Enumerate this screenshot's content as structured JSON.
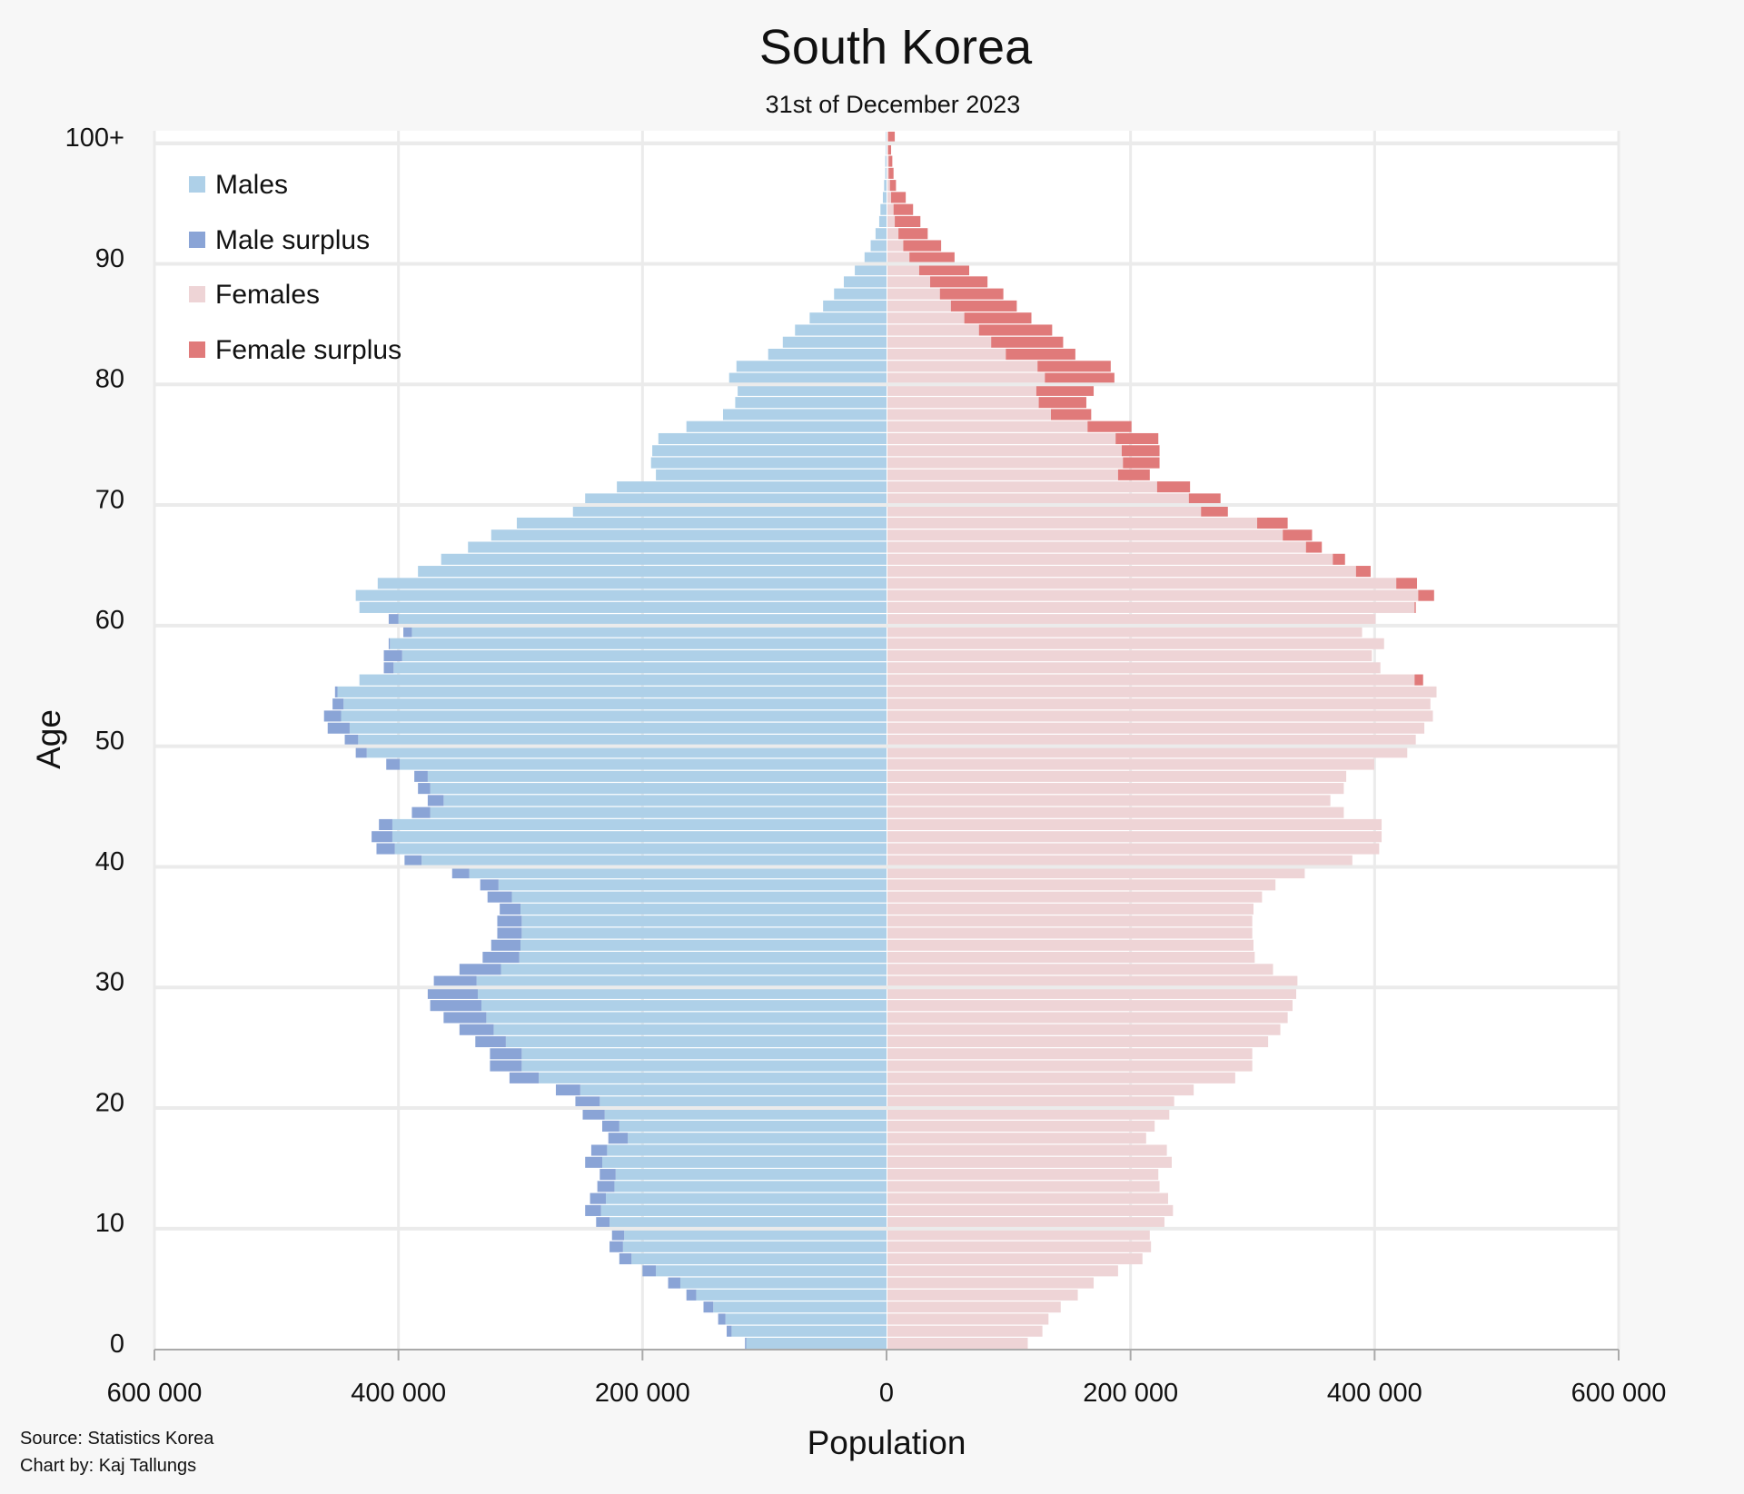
{
  "chart_data": {
    "type": "bar",
    "orientation": "population-pyramid",
    "title": "South Korea",
    "subtitle": "31st of December 2023",
    "xlabel": "Population",
    "ylabel": "Age",
    "xlim": [
      -600000,
      600000
    ],
    "x_tick_labels": [
      "600 000",
      "400 000",
      "200 000",
      "0",
      "200 000",
      "400 000",
      "600 000"
    ],
    "y_tick_labels": [
      "0",
      "10",
      "20",
      "30",
      "40",
      "50",
      "60",
      "70",
      "80",
      "90",
      "100+"
    ],
    "grid": true,
    "legend_position": "top-left",
    "legend": [
      "Males",
      "Male surplus",
      "Females",
      "Female surplus"
    ],
    "colors": {
      "males": "#aed0e8",
      "male_surplus": "#8aa4d6",
      "females": "#eed4d6",
      "female_surplus": "#e07a7a"
    },
    "ages": [
      "0",
      "1",
      "2",
      "3",
      "4",
      "5",
      "6",
      "7",
      "8",
      "9",
      "10",
      "11",
      "12",
      "13",
      "14",
      "15",
      "16",
      "17",
      "18",
      "19",
      "20",
      "21",
      "22",
      "23",
      "24",
      "25",
      "26",
      "27",
      "28",
      "29",
      "30",
      "31",
      "32",
      "33",
      "34",
      "35",
      "36",
      "37",
      "38",
      "39",
      "40",
      "41",
      "42",
      "43",
      "44",
      "45",
      "46",
      "47",
      "48",
      "49",
      "50",
      "51",
      "52",
      "53",
      "54",
      "55",
      "56",
      "57",
      "58",
      "59",
      "60",
      "61",
      "62",
      "63",
      "64",
      "65",
      "66",
      "67",
      "68",
      "69",
      "70",
      "71",
      "72",
      "73",
      "74",
      "75",
      "76",
      "77",
      "78",
      "79",
      "80",
      "81",
      "82",
      "83",
      "84",
      "85",
      "86",
      "87",
      "88",
      "89",
      "90",
      "91",
      "92",
      "93",
      "94",
      "95",
      "96",
      "97",
      "98",
      "99",
      "100+"
    ],
    "series": [
      {
        "name": "Males",
        "values": [
          116000,
          131000,
          138000,
          150000,
          164000,
          179000,
          200000,
          219000,
          227000,
          225000,
          238000,
          247000,
          243000,
          237000,
          235000,
          247000,
          242000,
          228000,
          233000,
          249000,
          255000,
          271000,
          309000,
          325000,
          325000,
          337000,
          350000,
          363000,
          374000,
          376000,
          371000,
          350000,
          331000,
          324000,
          319000,
          319000,
          317000,
          327000,
          333000,
          356000,
          395000,
          418000,
          422000,
          416000,
          389000,
          376000,
          384000,
          387000,
          410000,
          435000,
          444000,
          458000,
          461000,
          454000,
          452000,
          432000,
          412000,
          412000,
          408000,
          396000,
          408000,
          432000,
          435000,
          417000,
          384000,
          365000,
          343000,
          324000,
          303000,
          257000,
          247000,
          221000,
          189000,
          193000,
          192000,
          187000,
          164000,
          134000,
          124000,
          122000,
          129000,
          123000,
          97000,
          85000,
          75000,
          63000,
          52000,
          43000,
          35000,
          26000,
          18000,
          13000,
          9000,
          6000,
          5000,
          3000,
          2000,
          1000,
          1000,
          500,
          500
        ]
      },
      {
        "name": "Females",
        "values": [
          115000,
          127000,
          132000,
          142000,
          156000,
          169000,
          189000,
          209000,
          216000,
          215000,
          227000,
          234000,
          230000,
          223000,
          222000,
          233000,
          229000,
          212000,
          219000,
          231000,
          235000,
          251000,
          285000,
          299000,
          299000,
          312000,
          322000,
          328000,
          332000,
          335000,
          336000,
          316000,
          301000,
          300000,
          299000,
          299000,
          300000,
          307000,
          318000,
          342000,
          381000,
          403000,
          405000,
          405000,
          374000,
          363000,
          374000,
          376000,
          399000,
          426000,
          433000,
          440000,
          447000,
          445000,
          450000,
          439000,
          404000,
          397000,
          407000,
          389000,
          400000,
          433000,
          448000,
          434000,
          396000,
          375000,
          356000,
          348000,
          328000,
          279000,
          273000,
          248000,
          215000,
          223000,
          223000,
          222000,
          200000,
          167000,
          163000,
          169000,
          186000,
          183000,
          154000,
          144000,
          135000,
          118000,
          106000,
          95000,
          82000,
          67000,
          55000,
          44000,
          33000,
          27000,
          21000,
          15000,
          7000,
          5000,
          4000,
          3000,
          6000
        ]
      }
    ]
  },
  "footer": {
    "source": "Source: Statistics Korea",
    "credit": "Chart by: Kaj Tallungs"
  }
}
